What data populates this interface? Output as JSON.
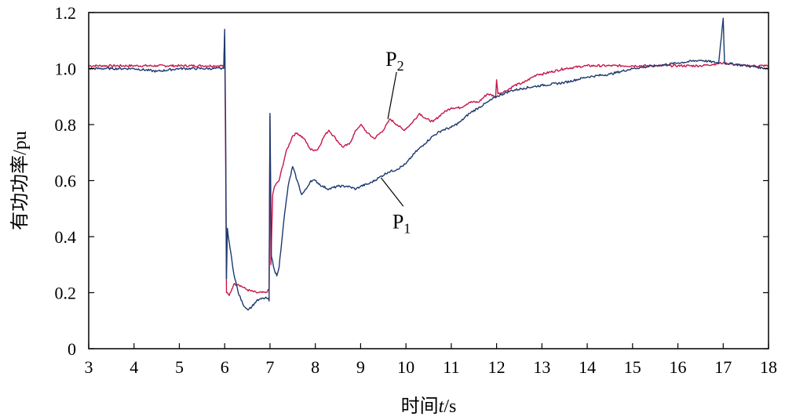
{
  "chart_data": {
    "type": "line",
    "xlabel_prefix": "时间",
    "xlabel_var": "t",
    "xlabel_unit": "/s",
    "ylabel": "有功功率/pu",
    "xlim": [
      3,
      18
    ],
    "ylim": [
      0,
      1.2
    ],
    "xticks": [
      3,
      4,
      5,
      6,
      7,
      8,
      9,
      10,
      11,
      12,
      13,
      14,
      15,
      16,
      17,
      18
    ],
    "yticks": [
      0,
      0.2,
      0.4,
      0.6,
      0.8,
      1.0,
      1.2
    ],
    "ytick_labels": [
      "0",
      "0.2",
      "0.4",
      "0.6",
      "0.8",
      "1.0",
      "1.2"
    ],
    "grid": false,
    "series": [
      {
        "name": "P2",
        "color": "#c8174a",
        "points": [
          [
            3.0,
            1.01
          ],
          [
            3.5,
            1.01
          ],
          [
            4.0,
            1.01
          ],
          [
            4.5,
            1.01
          ],
          [
            5.0,
            1.01
          ],
          [
            5.5,
            1.01
          ],
          [
            5.98,
            1.01
          ],
          [
            6.0,
            1.12
          ],
          [
            6.02,
            0.7
          ],
          [
            6.04,
            0.2
          ],
          [
            6.1,
            0.19
          ],
          [
            6.2,
            0.23
          ],
          [
            6.3,
            0.23
          ],
          [
            6.5,
            0.21
          ],
          [
            6.7,
            0.2
          ],
          [
            6.9,
            0.2
          ],
          [
            6.98,
            0.21
          ],
          [
            7.0,
            0.83
          ],
          [
            7.02,
            0.3
          ],
          [
            7.06,
            0.55
          ],
          [
            7.1,
            0.58
          ],
          [
            7.2,
            0.6
          ],
          [
            7.35,
            0.7
          ],
          [
            7.5,
            0.76
          ],
          [
            7.6,
            0.77
          ],
          [
            7.75,
            0.75
          ],
          [
            7.9,
            0.71
          ],
          [
            8.05,
            0.71
          ],
          [
            8.2,
            0.76
          ],
          [
            8.3,
            0.78
          ],
          [
            8.45,
            0.75
          ],
          [
            8.6,
            0.72
          ],
          [
            8.75,
            0.73
          ],
          [
            8.9,
            0.78
          ],
          [
            9.0,
            0.8
          ],
          [
            9.15,
            0.77
          ],
          [
            9.3,
            0.75
          ],
          [
            9.5,
            0.78
          ],
          [
            9.65,
            0.82
          ],
          [
            9.8,
            0.8
          ],
          [
            9.95,
            0.78
          ],
          [
            10.1,
            0.8
          ],
          [
            10.3,
            0.84
          ],
          [
            10.45,
            0.82
          ],
          [
            10.6,
            0.81
          ],
          [
            10.8,
            0.84
          ],
          [
            11.0,
            0.86
          ],
          [
            11.2,
            0.86
          ],
          [
            11.4,
            0.88
          ],
          [
            11.6,
            0.88
          ],
          [
            11.8,
            0.91
          ],
          [
            11.98,
            0.9
          ],
          [
            12.0,
            0.96
          ],
          [
            12.03,
            0.91
          ],
          [
            12.2,
            0.92
          ],
          [
            12.4,
            0.94
          ],
          [
            12.6,
            0.95
          ],
          [
            12.8,
            0.97
          ],
          [
            12.9,
            0.98
          ],
          [
            13.0,
            0.98
          ],
          [
            13.5,
            1.0
          ],
          [
            14.0,
            1.01
          ],
          [
            14.5,
            1.01
          ],
          [
            15.0,
            1.01
          ],
          [
            15.5,
            1.01
          ],
          [
            16.0,
            1.01
          ],
          [
            16.5,
            1.01
          ],
          [
            17.0,
            1.02
          ],
          [
            17.5,
            1.01
          ],
          [
            18.0,
            1.01
          ]
        ]
      },
      {
        "name": "P1",
        "color": "#1c3a6e",
        "points": [
          [
            3.0,
            1.0
          ],
          [
            3.5,
            1.0
          ],
          [
            4.0,
            1.0
          ],
          [
            4.5,
            0.99
          ],
          [
            5.0,
            1.0
          ],
          [
            5.5,
            1.0
          ],
          [
            5.98,
            1.0
          ],
          [
            6.0,
            1.14
          ],
          [
            6.02,
            0.8
          ],
          [
            6.04,
            0.25
          ],
          [
            6.06,
            0.43
          ],
          [
            6.1,
            0.38
          ],
          [
            6.2,
            0.27
          ],
          [
            6.3,
            0.2
          ],
          [
            6.4,
            0.16
          ],
          [
            6.5,
            0.14
          ],
          [
            6.6,
            0.15
          ],
          [
            6.7,
            0.17
          ],
          [
            6.85,
            0.18
          ],
          [
            6.95,
            0.18
          ],
          [
            6.98,
            0.17
          ],
          [
            7.0,
            0.84
          ],
          [
            7.03,
            0.33
          ],
          [
            7.1,
            0.28
          ],
          [
            7.15,
            0.26
          ],
          [
            7.2,
            0.29
          ],
          [
            7.3,
            0.45
          ],
          [
            7.4,
            0.58
          ],
          [
            7.5,
            0.65
          ],
          [
            7.6,
            0.6
          ],
          [
            7.7,
            0.55
          ],
          [
            7.8,
            0.57
          ],
          [
            7.9,
            0.6
          ],
          [
            8.0,
            0.6
          ],
          [
            8.15,
            0.58
          ],
          [
            8.3,
            0.57
          ],
          [
            8.5,
            0.58
          ],
          [
            8.7,
            0.58
          ],
          [
            8.9,
            0.57
          ],
          [
            9.0,
            0.58
          ],
          [
            9.2,
            0.59
          ],
          [
            9.4,
            0.61
          ],
          [
            9.6,
            0.63
          ],
          [
            9.8,
            0.64
          ],
          [
            10.0,
            0.66
          ],
          [
            10.2,
            0.7
          ],
          [
            10.4,
            0.73
          ],
          [
            10.6,
            0.76
          ],
          [
            10.8,
            0.78
          ],
          [
            11.0,
            0.79
          ],
          [
            11.2,
            0.81
          ],
          [
            11.4,
            0.84
          ],
          [
            11.6,
            0.86
          ],
          [
            11.8,
            0.88
          ],
          [
            12.0,
            0.9
          ],
          [
            12.3,
            0.92
          ],
          [
            12.6,
            0.93
          ],
          [
            13.0,
            0.94
          ],
          [
            13.5,
            0.95
          ],
          [
            14.0,
            0.97
          ],
          [
            14.5,
            0.98
          ],
          [
            15.0,
            1.0
          ],
          [
            15.5,
            1.01
          ],
          [
            16.0,
            1.02
          ],
          [
            16.5,
            1.03
          ],
          [
            16.9,
            1.02
          ],
          [
            17.0,
            1.18
          ],
          [
            17.03,
            1.02
          ],
          [
            17.5,
            1.01
          ],
          [
            18.0,
            1.0
          ]
        ]
      }
    ],
    "annotations": [
      {
        "main": "P",
        "sub": "2",
        "x": 9.55,
        "y": 1.01,
        "target": [
          9.6,
          0.82
        ]
      },
      {
        "main": "P",
        "sub": "1",
        "x": 9.7,
        "y": 0.43,
        "target": [
          9.45,
          0.61
        ]
      }
    ]
  }
}
